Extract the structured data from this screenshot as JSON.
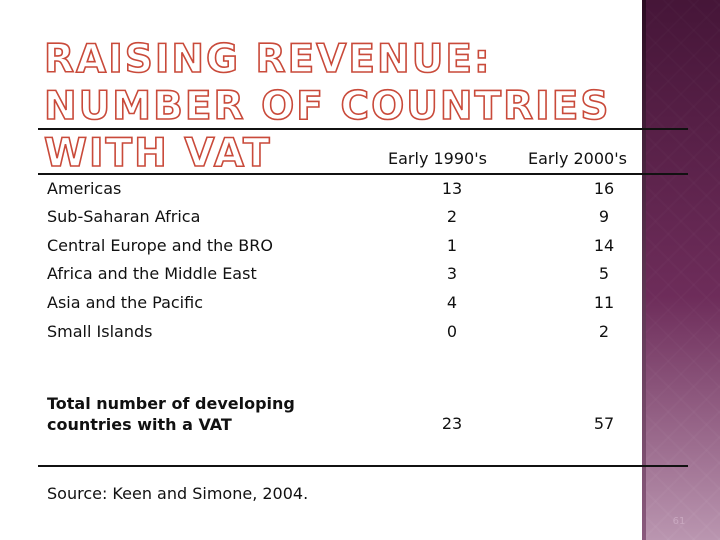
{
  "slide": {
    "title": "RAISING REVENUE: NUMBER OF COUNTRIES WITH VAT",
    "source": "Source: Keen and Simone, 2004.",
    "slide_number": "61"
  },
  "table": {
    "headers": [
      "Early 1990's",
      "Early 2000's"
    ],
    "rows": [
      {
        "label": "Americas",
        "v1990": "13",
        "v2000": "16"
      },
      {
        "label": "Sub-Saharan Africa",
        "v1990": "2",
        "v2000": "9"
      },
      {
        "label": "Central Europe and the BRO",
        "v1990": "1",
        "v2000": "14"
      },
      {
        "label": "Africa and the Middle East",
        "v1990": "3",
        "v2000": "5"
      },
      {
        "label": "Asia and the Pacific",
        "v1990": "4",
        "v2000": "11"
      },
      {
        "label": "Small Islands",
        "v1990": "0",
        "v2000": "2"
      }
    ],
    "total": {
      "label": "Total number of developing countries with a VAT",
      "v1990": "23",
      "v2000": "57"
    }
  },
  "colors": {
    "title_outline": "#c94a3a",
    "side_panel": "#6b2a55"
  }
}
